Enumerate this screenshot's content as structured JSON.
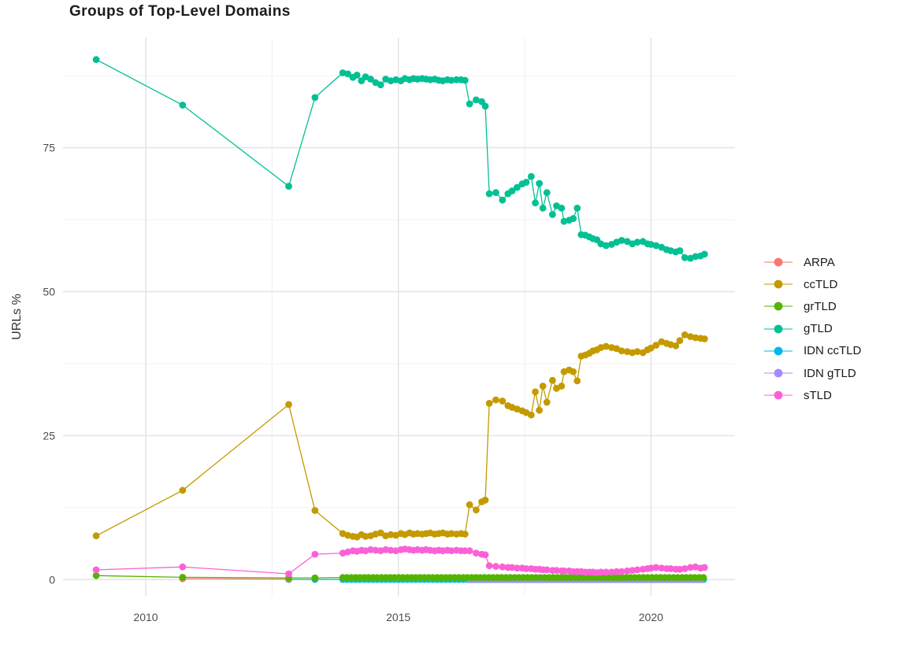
{
  "title": "Groups of Top-Level Domains",
  "chart_data": {
    "type": "line",
    "title": "Groups of Top-Level Domains",
    "xlabel": "",
    "ylabel": "URLs %",
    "xlim": [
      2008.363,
      2021.663
    ],
    "ylim": [
      -2.83,
      94.08
    ],
    "x_ticks": [
      2010,
      2015,
      2020
    ],
    "x_minor_ticks": [
      2012.5,
      2017.5
    ],
    "y_ticks": [
      0,
      25,
      50,
      75
    ],
    "y_minor_ticks": [
      12.5,
      37.5,
      62.5,
      87.5
    ],
    "grid": true,
    "legend_position": "right",
    "tick_color": "#4d4d4d",
    "grid_major_color": "#e2e2e2",
    "grid_minor_color": "#f0f0f0",
    "draw_order": [
      4,
      5,
      0,
      2,
      6,
      1,
      3
    ],
    "series": [
      {
        "name": "ARPA",
        "color": "#F8766D",
        "points": [
          [
            2010.73,
            0.15
          ],
          [
            2012.83,
            0.1
          ]
        ]
      },
      {
        "name": "ccTLD",
        "color": "#C49A00",
        "points": [
          [
            2009.02,
            7.6
          ],
          [
            2010.73,
            15.5
          ],
          [
            2012.83,
            30.4
          ],
          [
            2013.35,
            12
          ],
          [
            2013.9,
            8
          ],
          [
            2014,
            7.7
          ],
          [
            2014.1,
            7.5
          ],
          [
            2014.18,
            7.4
          ],
          [
            2014.27,
            7.8
          ],
          [
            2014.35,
            7.5
          ],
          [
            2014.45,
            7.6
          ],
          [
            2014.55,
            7.9
          ],
          [
            2014.65,
            8.1
          ],
          [
            2014.75,
            7.6
          ],
          [
            2014.85,
            7.8
          ],
          [
            2014.95,
            7.7
          ],
          [
            2015.05,
            8
          ],
          [
            2015.13,
            7.8
          ],
          [
            2015.22,
            8.1
          ],
          [
            2015.3,
            7.9
          ],
          [
            2015.38,
            8
          ],
          [
            2015.47,
            7.9
          ],
          [
            2015.55,
            8
          ],
          [
            2015.63,
            8.1
          ],
          [
            2015.72,
            7.9
          ],
          [
            2015.8,
            8
          ],
          [
            2015.88,
            8.1
          ],
          [
            2015.97,
            7.9
          ],
          [
            2016.05,
            8
          ],
          [
            2016.15,
            7.9
          ],
          [
            2016.24,
            8
          ],
          [
            2016.32,
            7.9
          ],
          [
            2016.41,
            13
          ],
          [
            2016.54,
            12.1
          ],
          [
            2016.65,
            13.5
          ],
          [
            2016.72,
            13.8
          ],
          [
            2016.8,
            30.6
          ],
          [
            2016.93,
            31.2
          ],
          [
            2017.06,
            31
          ],
          [
            2017.17,
            30.2
          ],
          [
            2017.25,
            29.9
          ],
          [
            2017.35,
            29.6
          ],
          [
            2017.45,
            29.3
          ],
          [
            2017.53,
            29
          ],
          [
            2017.63,
            28.6
          ],
          [
            2017.71,
            32.6
          ],
          [
            2017.79,
            29.4
          ],
          [
            2017.86,
            33.6
          ],
          [
            2017.94,
            30.8
          ],
          [
            2018.05,
            34.6
          ],
          [
            2018.13,
            33.2
          ],
          [
            2018.23,
            33.6
          ],
          [
            2018.28,
            36.1
          ],
          [
            2018.38,
            36.4
          ],
          [
            2018.46,
            36.1
          ],
          [
            2018.54,
            34.5
          ],
          [
            2018.62,
            38.8
          ],
          [
            2018.7,
            39
          ],
          [
            2018.78,
            39.3
          ],
          [
            2018.85,
            39.7
          ],
          [
            2018.93,
            39.9
          ],
          [
            2019.01,
            40.3
          ],
          [
            2019.11,
            40.5
          ],
          [
            2019.22,
            40.3
          ],
          [
            2019.32,
            40.1
          ],
          [
            2019.42,
            39.7
          ],
          [
            2019.53,
            39.6
          ],
          [
            2019.63,
            39.4
          ],
          [
            2019.73,
            39.6
          ],
          [
            2019.84,
            39.4
          ],
          [
            2019.93,
            39.9
          ],
          [
            2020,
            40.2
          ],
          [
            2020.1,
            40.7
          ],
          [
            2020.21,
            41.3
          ],
          [
            2020.31,
            41
          ],
          [
            2020.39,
            40.8
          ],
          [
            2020.49,
            40.6
          ],
          [
            2020.57,
            41.5
          ],
          [
            2020.67,
            42.5
          ],
          [
            2020.78,
            42.2
          ],
          [
            2020.88,
            42
          ],
          [
            2020.98,
            41.9
          ],
          [
            2021.06,
            41.8
          ]
        ]
      },
      {
        "name": "grTLD",
        "color": "#53B400",
        "points": [
          [
            2009.02,
            0.7
          ],
          [
            2010.73,
            0.4
          ],
          [
            2012.83,
            0.3
          ],
          [
            2013.35,
            0.3
          ]
        ],
        "fill": {
          "from": 2013.9,
          "to": 2021.06,
          "step": 0.085,
          "value": 0.35
        }
      },
      {
        "name": "gTLD",
        "color": "#00C094",
        "points": [
          [
            2009.02,
            90.3
          ],
          [
            2010.73,
            82.4
          ],
          [
            2012.83,
            68.3
          ],
          [
            2013.35,
            83.7
          ],
          [
            2013.9,
            88
          ],
          [
            2014,
            87.8
          ],
          [
            2014.1,
            87.2
          ],
          [
            2014.18,
            87.6
          ],
          [
            2014.27,
            86.6
          ],
          [
            2014.35,
            87.3
          ],
          [
            2014.45,
            86.9
          ],
          [
            2014.55,
            86.3
          ],
          [
            2014.65,
            85.9
          ],
          [
            2014.75,
            86.9
          ],
          [
            2014.85,
            86.6
          ],
          [
            2014.95,
            86.8
          ],
          [
            2015.05,
            86.6
          ],
          [
            2015.13,
            87
          ],
          [
            2015.22,
            86.8
          ],
          [
            2015.3,
            87
          ],
          [
            2015.38,
            86.9
          ],
          [
            2015.47,
            87
          ],
          [
            2015.55,
            86.9
          ],
          [
            2015.63,
            86.8
          ],
          [
            2015.72,
            86.9
          ],
          [
            2015.8,
            86.7
          ],
          [
            2015.88,
            86.6
          ],
          [
            2015.97,
            86.8
          ],
          [
            2016.05,
            86.7
          ],
          [
            2016.15,
            86.8
          ],
          [
            2016.24,
            86.8
          ],
          [
            2016.32,
            86.7
          ],
          [
            2016.41,
            82.6
          ],
          [
            2016.54,
            83.3
          ],
          [
            2016.65,
            83
          ],
          [
            2016.72,
            82.2
          ],
          [
            2016.8,
            67
          ],
          [
            2016.93,
            67.2
          ],
          [
            2017.06,
            65.9
          ],
          [
            2017.17,
            67
          ],
          [
            2017.25,
            67.5
          ],
          [
            2017.35,
            68.1
          ],
          [
            2017.45,
            68.7
          ],
          [
            2017.53,
            69
          ],
          [
            2017.63,
            70
          ],
          [
            2017.71,
            65.4
          ],
          [
            2017.79,
            68.8
          ],
          [
            2017.86,
            64.5
          ],
          [
            2017.94,
            67.2
          ],
          [
            2018.05,
            63.4
          ],
          [
            2018.13,
            64.9
          ],
          [
            2018.23,
            64.5
          ],
          [
            2018.28,
            62.2
          ],
          [
            2018.38,
            62.4
          ],
          [
            2018.46,
            62.7
          ],
          [
            2018.54,
            64.5
          ],
          [
            2018.62,
            59.9
          ],
          [
            2018.7,
            59.8
          ],
          [
            2018.78,
            59.5
          ],
          [
            2018.85,
            59.2
          ],
          [
            2018.93,
            59
          ],
          [
            2019.01,
            58.3
          ],
          [
            2019.11,
            58
          ],
          [
            2019.22,
            58.2
          ],
          [
            2019.32,
            58.6
          ],
          [
            2019.42,
            58.9
          ],
          [
            2019.53,
            58.7
          ],
          [
            2019.63,
            58.3
          ],
          [
            2019.73,
            58.6
          ],
          [
            2019.84,
            58.7
          ],
          [
            2019.93,
            58.3
          ],
          [
            2020,
            58.2
          ],
          [
            2020.1,
            58
          ],
          [
            2020.21,
            57.7
          ],
          [
            2020.31,
            57.3
          ],
          [
            2020.39,
            57.1
          ],
          [
            2020.49,
            56.9
          ],
          [
            2020.57,
            57.1
          ],
          [
            2020.67,
            55.9
          ],
          [
            2020.78,
            55.8
          ],
          [
            2020.88,
            56.1
          ],
          [
            2020.98,
            56.2
          ],
          [
            2021.06,
            56.5
          ]
        ]
      },
      {
        "name": "IDN ccTLD",
        "color": "#00B6EB",
        "points": [
          [
            2012.83,
            0.02
          ],
          [
            2013.35,
            0.02
          ]
        ],
        "fill": {
          "from": 2013.9,
          "to": 2021.06,
          "step": 0.085,
          "value": 0.02
        }
      },
      {
        "name": "IDN gTLD",
        "color": "#A58AFF",
        "points": [],
        "fill": {
          "from": 2016.41,
          "to": 2021.06,
          "step": 0.085,
          "value": 0.0
        }
      },
      {
        "name": "sTLD",
        "color": "#FB61D7",
        "points": [
          [
            2009.02,
            1.7
          ],
          [
            2010.73,
            2.2
          ],
          [
            2012.83,
            1
          ],
          [
            2013.35,
            4.4
          ],
          [
            2013.9,
            4.6
          ],
          [
            2014,
            4.8
          ],
          [
            2014.1,
            5
          ],
          [
            2014.18,
            4.9
          ],
          [
            2014.27,
            5.1
          ],
          [
            2014.35,
            5
          ],
          [
            2014.45,
            5.2
          ],
          [
            2014.55,
            5.1
          ],
          [
            2014.65,
            5
          ],
          [
            2014.75,
            5.2
          ],
          [
            2014.85,
            5.1
          ],
          [
            2014.95,
            5
          ],
          [
            2015.05,
            5.2
          ],
          [
            2015.13,
            5.3
          ],
          [
            2015.22,
            5.2
          ],
          [
            2015.3,
            5.1
          ],
          [
            2015.38,
            5.2
          ],
          [
            2015.47,
            5.1
          ],
          [
            2015.55,
            5.2
          ],
          [
            2015.63,
            5.1
          ],
          [
            2015.72,
            5
          ],
          [
            2015.8,
            5.1
          ],
          [
            2015.88,
            5
          ],
          [
            2015.97,
            5.1
          ],
          [
            2016.05,
            5
          ],
          [
            2016.15,
            5.1
          ],
          [
            2016.24,
            5
          ],
          [
            2016.32,
            5
          ],
          [
            2016.41,
            5
          ],
          [
            2016.54,
            4.6
          ],
          [
            2016.65,
            4.4
          ],
          [
            2016.72,
            4.3
          ],
          [
            2016.8,
            2.4
          ],
          [
            2016.93,
            2.3
          ],
          [
            2017.06,
            2.2
          ],
          [
            2017.17,
            2.1
          ],
          [
            2017.25,
            2.1
          ],
          [
            2017.35,
            2
          ],
          [
            2017.45,
            2
          ],
          [
            2017.53,
            1.9
          ],
          [
            2017.63,
            1.9
          ],
          [
            2017.71,
            1.8
          ],
          [
            2017.79,
            1.8
          ],
          [
            2017.86,
            1.7
          ],
          [
            2017.94,
            1.7
          ],
          [
            2018.05,
            1.6
          ],
          [
            2018.13,
            1.6
          ],
          [
            2018.23,
            1.5
          ],
          [
            2018.28,
            1.5
          ],
          [
            2018.38,
            1.5
          ],
          [
            2018.46,
            1.4
          ],
          [
            2018.54,
            1.4
          ],
          [
            2018.62,
            1.4
          ],
          [
            2018.7,
            1.3
          ],
          [
            2018.78,
            1.3
          ],
          [
            2018.85,
            1.3
          ],
          [
            2018.93,
            1.2
          ],
          [
            2019.01,
            1.3
          ],
          [
            2019.11,
            1.3
          ],
          [
            2019.22,
            1.3
          ],
          [
            2019.32,
            1.4
          ],
          [
            2019.42,
            1.4
          ],
          [
            2019.53,
            1.5
          ],
          [
            2019.63,
            1.6
          ],
          [
            2019.73,
            1.7
          ],
          [
            2019.84,
            1.8
          ],
          [
            2019.93,
            1.9
          ],
          [
            2020,
            2
          ],
          [
            2020.1,
            2.1
          ],
          [
            2020.21,
            2
          ],
          [
            2020.31,
            1.9
          ],
          [
            2020.39,
            1.9
          ],
          [
            2020.49,
            1.8
          ],
          [
            2020.57,
            1.8
          ],
          [
            2020.67,
            1.9
          ],
          [
            2020.78,
            2.1
          ],
          [
            2020.88,
            2.2
          ],
          [
            2020.98,
            2
          ],
          [
            2021.06,
            2.1
          ]
        ]
      }
    ]
  }
}
